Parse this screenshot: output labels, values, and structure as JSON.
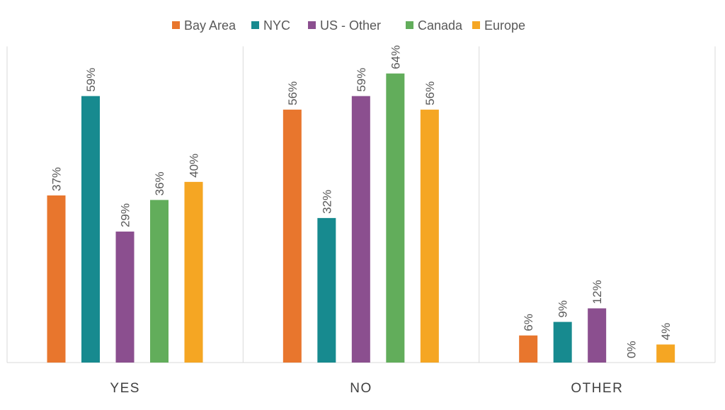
{
  "chart_data": {
    "type": "bar",
    "title": "",
    "xlabel": "",
    "ylabel": "",
    "ylim": [
      0,
      70
    ],
    "grid": false,
    "legend_position": "top",
    "categories": [
      "YES",
      "NO",
      "OTHER"
    ],
    "series": [
      {
        "name": "Bay Area",
        "color": "#E8762D",
        "values": [
          37,
          56,
          6
        ],
        "labels": [
          "37%",
          "56%",
          "6%"
        ]
      },
      {
        "name": "NYC",
        "color": "#178A8F",
        "values": [
          59,
          32,
          9
        ],
        "labels": [
          "59%",
          "32%",
          "9%"
        ]
      },
      {
        "name": "US - Other",
        "color": "#8B4F8F",
        "values": [
          29,
          59,
          12
        ],
        "labels": [
          "29%",
          "59%",
          "12%"
        ]
      },
      {
        "name": "Canada",
        "color": "#62AD5B",
        "values": [
          36,
          64,
          0
        ],
        "labels": [
          "36%",
          "64%",
          "0%"
        ]
      },
      {
        "name": "Europe",
        "color": "#F5A623",
        "values": [
          40,
          56,
          4
        ],
        "labels": [
          "40%",
          "56%",
          "4%"
        ]
      }
    ]
  }
}
